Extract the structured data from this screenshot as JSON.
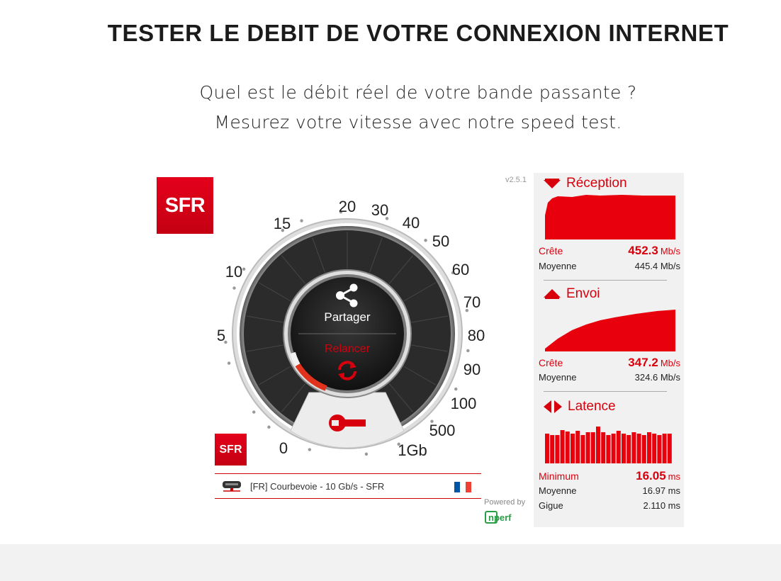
{
  "header": {
    "title": "TESTER LE DEBIT DE VOTRE CONNEXION INTERNET",
    "subtitle_line1": "Quel est le débit réel de votre bande passante ?",
    "subtitle_line2": "Mesurez votre vitesse avec notre speed test."
  },
  "brand": {
    "logo_text": "SFR",
    "accent": "#d9000d"
  },
  "widget": {
    "version": "v2.5.1",
    "gauge": {
      "scale_labels": [
        "0",
        "5",
        "10",
        "15",
        "20",
        "30",
        "40",
        "50",
        "60",
        "70",
        "80",
        "90",
        "100",
        "500",
        "1Gb"
      ],
      "share_label": "Partager",
      "restart_label": "Relancer",
      "share_icon": "share-icon",
      "restart_icon": "refresh-icon",
      "settings_icon": "wrench-icon"
    },
    "server": {
      "label": "[FR] Courbevoie - 10 Gb/s - SFR",
      "flag_colors": [
        "#0055a4",
        "#ffffff",
        "#ef4135"
      ]
    },
    "powered_by": "Powered by",
    "nperf_logo": "nperf"
  },
  "results": {
    "reception": {
      "title": "Réception",
      "peak_label": "Crête",
      "peak_value": "452.3",
      "peak_unit": "Mb/s",
      "avg_label": "Moyenne",
      "avg_value": "445.4 Mb/s"
    },
    "upload": {
      "title": "Envoi",
      "peak_label": "Crête",
      "peak_value": "347.2",
      "peak_unit": "Mb/s",
      "avg_label": "Moyenne",
      "avg_value": "324.6 Mb/s"
    },
    "latency": {
      "title": "Latence",
      "min_label": "Minimum",
      "min_value": "16.05",
      "min_unit": "ms",
      "avg_label": "Moyenne",
      "avg_value": "16.97 ms",
      "jitter_label": "Gigue",
      "jitter_value": "2.110 ms"
    }
  }
}
